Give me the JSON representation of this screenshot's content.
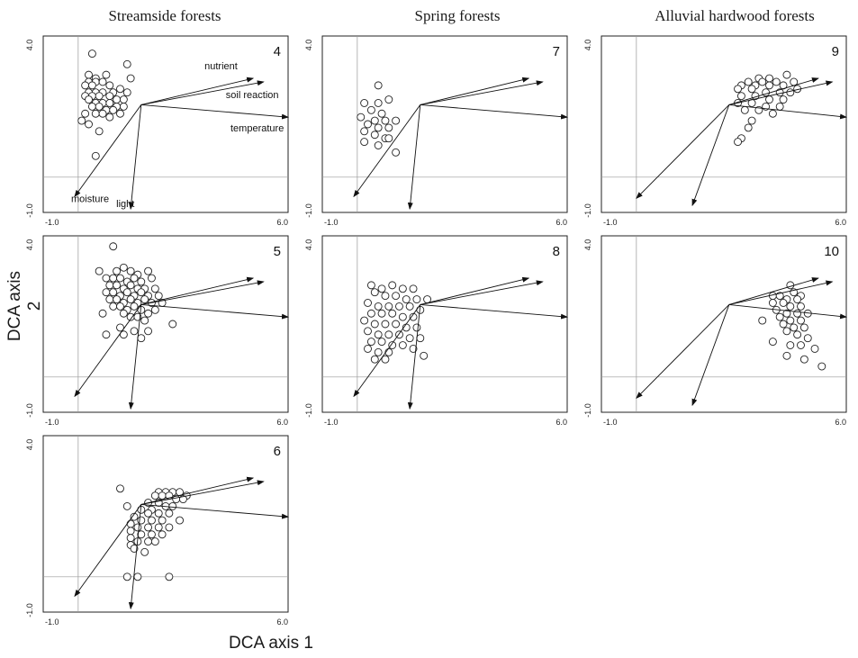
{
  "column_titles": [
    "Streamside forests",
    "Spring forests",
    "Alluvial hardwood forests"
  ],
  "y_axis_title": "DCA axis 2",
  "x_axis_title": "DCA axis 1",
  "chart_data": {
    "type": "scatter",
    "xlim": [
      -1.0,
      6.0
    ],
    "ylim": [
      -1.0,
      4.0
    ],
    "x_tick_labels": [
      "-1.0",
      "6.0"
    ],
    "y_tick_labels": [
      "4.0",
      "-1.0"
    ],
    "reference_lines": {
      "x": 0,
      "y": 0
    },
    "vector_labels": [
      "nutrient",
      "soil reaction",
      "temperature",
      "light",
      "moisture"
    ],
    "panels": [
      {
        "label": "4",
        "origin": [
          1.8,
          2.05
        ],
        "vectors": [
          [
            5.0,
            2.8
          ],
          [
            5.3,
            2.7
          ],
          [
            6.0,
            1.7
          ],
          [
            1.5,
            -0.9
          ],
          [
            -0.1,
            -0.55
          ]
        ],
        "points": [
          [
            0.4,
            3.5
          ],
          [
            1.4,
            3.2
          ],
          [
            0.3,
            2.9
          ],
          [
            0.5,
            2.8
          ],
          [
            0.8,
            2.9
          ],
          [
            1.5,
            2.8
          ],
          [
            0.3,
            2.7
          ],
          [
            0.5,
            2.7
          ],
          [
            0.7,
            2.7
          ],
          [
            0.9,
            2.6
          ],
          [
            0.2,
            2.6
          ],
          [
            0.4,
            2.6
          ],
          [
            1.2,
            2.5
          ],
          [
            1.4,
            2.4
          ],
          [
            0.3,
            2.4
          ],
          [
            0.5,
            2.4
          ],
          [
            0.7,
            2.4
          ],
          [
            1.0,
            2.4
          ],
          [
            0.2,
            2.3
          ],
          [
            0.4,
            2.3
          ],
          [
            0.6,
            2.3
          ],
          [
            0.9,
            2.3
          ],
          [
            1.1,
            2.2
          ],
          [
            1.3,
            2.2
          ],
          [
            0.3,
            2.2
          ],
          [
            0.5,
            2.1
          ],
          [
            0.7,
            2.1
          ],
          [
            0.9,
            2.1
          ],
          [
            1.1,
            2.0
          ],
          [
            1.3,
            2.0
          ],
          [
            0.4,
            2.0
          ],
          [
            0.6,
            2.0
          ],
          [
            0.8,
            1.9
          ],
          [
            1.0,
            1.9
          ],
          [
            1.2,
            1.8
          ],
          [
            0.5,
            1.8
          ],
          [
            0.7,
            1.8
          ],
          [
            0.9,
            1.7
          ],
          [
            0.2,
            1.8
          ],
          [
            0.1,
            1.6
          ],
          [
            0.3,
            1.5
          ],
          [
            0.6,
            1.3
          ],
          [
            0.5,
            0.6
          ]
        ]
      },
      {
        "label": "5",
        "origin": [
          1.8,
          2.05
        ],
        "vectors": [
          [
            5.0,
            2.8
          ],
          [
            5.3,
            2.7
          ],
          [
            6.0,
            1.7
          ],
          [
            1.5,
            -0.9
          ],
          [
            -0.1,
            -0.55
          ]
        ],
        "points": [
          [
            1.0,
            3.7
          ],
          [
            0.6,
            3.0
          ],
          [
            1.1,
            3.0
          ],
          [
            1.3,
            3.1
          ],
          [
            1.5,
            3.0
          ],
          [
            1.7,
            2.9
          ],
          [
            2.0,
            3.0
          ],
          [
            0.8,
            2.8
          ],
          [
            1.0,
            2.8
          ],
          [
            1.2,
            2.8
          ],
          [
            1.4,
            2.7
          ],
          [
            1.6,
            2.8
          ],
          [
            1.8,
            2.7
          ],
          [
            2.1,
            2.8
          ],
          [
            0.9,
            2.6
          ],
          [
            1.1,
            2.6
          ],
          [
            1.3,
            2.5
          ],
          [
            1.5,
            2.6
          ],
          [
            1.7,
            2.5
          ],
          [
            1.9,
            2.5
          ],
          [
            2.2,
            2.5
          ],
          [
            0.8,
            2.4
          ],
          [
            1.0,
            2.4
          ],
          [
            1.2,
            2.3
          ],
          [
            1.4,
            2.4
          ],
          [
            1.6,
            2.3
          ],
          [
            1.8,
            2.4
          ],
          [
            2.0,
            2.3
          ],
          [
            2.3,
            2.3
          ],
          [
            0.9,
            2.2
          ],
          [
            1.1,
            2.2
          ],
          [
            1.3,
            2.1
          ],
          [
            1.5,
            2.2
          ],
          [
            1.7,
            2.1
          ],
          [
            1.9,
            2.2
          ],
          [
            2.1,
            2.1
          ],
          [
            2.4,
            2.1
          ],
          [
            1.0,
            2.0
          ],
          [
            1.2,
            2.0
          ],
          [
            1.4,
            1.9
          ],
          [
            1.6,
            2.0
          ],
          [
            1.8,
            1.9
          ],
          [
            2.0,
            1.8
          ],
          [
            2.2,
            1.9
          ],
          [
            1.3,
            1.8
          ],
          [
            1.5,
            1.7
          ],
          [
            1.7,
            1.7
          ],
          [
            1.9,
            1.6
          ],
          [
            0.7,
            1.8
          ],
          [
            2.7,
            1.5
          ],
          [
            1.2,
            1.4
          ],
          [
            1.6,
            1.3
          ],
          [
            2.0,
            1.3
          ],
          [
            0.8,
            1.2
          ],
          [
            1.8,
            1.1
          ],
          [
            1.3,
            1.2
          ]
        ]
      },
      {
        "label": "6",
        "origin": [
          1.8,
          2.05
        ],
        "vectors": [
          [
            5.0,
            2.8
          ],
          [
            5.3,
            2.7
          ],
          [
            6.0,
            1.7
          ],
          [
            1.5,
            -0.9
          ],
          [
            -0.1,
            -0.55
          ]
        ],
        "points": [
          [
            1.2,
            2.5
          ],
          [
            2.3,
            2.4
          ],
          [
            2.5,
            2.4
          ],
          [
            2.7,
            2.4
          ],
          [
            2.9,
            2.4
          ],
          [
            3.1,
            2.3
          ],
          [
            2.2,
            2.3
          ],
          [
            2.4,
            2.3
          ],
          [
            2.6,
            2.3
          ],
          [
            2.8,
            2.2
          ],
          [
            3.0,
            2.2
          ],
          [
            2.0,
            2.1
          ],
          [
            2.3,
            2.1
          ],
          [
            2.5,
            2.0
          ],
          [
            2.7,
            2.0
          ],
          [
            1.4,
            2.0
          ],
          [
            2.1,
            1.9
          ],
          [
            1.8,
            1.9
          ],
          [
            2.0,
            1.8
          ],
          [
            2.3,
            1.8
          ],
          [
            2.6,
            1.8
          ],
          [
            1.6,
            1.7
          ],
          [
            1.8,
            1.6
          ],
          [
            2.1,
            1.6
          ],
          [
            2.4,
            1.6
          ],
          [
            2.9,
            1.6
          ],
          [
            1.5,
            1.5
          ],
          [
            1.7,
            1.4
          ],
          [
            2.0,
            1.4
          ],
          [
            2.3,
            1.4
          ],
          [
            2.6,
            1.4
          ],
          [
            1.5,
            1.3
          ],
          [
            1.8,
            1.2
          ],
          [
            2.1,
            1.2
          ],
          [
            2.4,
            1.2
          ],
          [
            1.5,
            1.1
          ],
          [
            1.7,
            1.0
          ],
          [
            2.0,
            1.0
          ],
          [
            2.2,
            1.0
          ],
          [
            1.5,
            0.9
          ],
          [
            1.6,
            0.8
          ],
          [
            1.9,
            0.7
          ],
          [
            1.4,
            0.0
          ],
          [
            1.7,
            0.0
          ],
          [
            2.6,
            0.0
          ]
        ]
      },
      {
        "label": "7",
        "origin": [
          1.8,
          2.05
        ],
        "vectors": [
          [
            4.9,
            2.8
          ],
          [
            5.3,
            2.7
          ],
          [
            6.0,
            1.7
          ],
          [
            1.5,
            -0.9
          ],
          [
            -0.1,
            -0.55
          ]
        ],
        "points": [
          [
            0.6,
            2.6
          ],
          [
            0.2,
            2.1
          ],
          [
            0.6,
            2.1
          ],
          [
            0.9,
            2.2
          ],
          [
            0.4,
            1.9
          ],
          [
            0.7,
            1.8
          ],
          [
            0.1,
            1.7
          ],
          [
            0.5,
            1.6
          ],
          [
            0.8,
            1.6
          ],
          [
            1.1,
            1.6
          ],
          [
            0.3,
            1.5
          ],
          [
            0.6,
            1.4
          ],
          [
            0.9,
            1.4
          ],
          [
            0.2,
            1.3
          ],
          [
            0.5,
            1.2
          ],
          [
            0.8,
            1.1
          ],
          [
            0.2,
            1.0
          ],
          [
            0.6,
            0.9
          ],
          [
            0.9,
            1.1
          ],
          [
            1.1,
            0.7
          ]
        ]
      },
      {
        "label": "8",
        "origin": [
          1.8,
          2.05
        ],
        "vectors": [
          [
            4.9,
            2.8
          ],
          [
            5.3,
            2.7
          ],
          [
            6.0,
            1.7
          ],
          [
            1.5,
            -0.9
          ],
          [
            -0.1,
            -0.55
          ]
        ],
        "points": [
          [
            0.4,
            2.6
          ],
          [
            0.7,
            2.5
          ],
          [
            1.0,
            2.6
          ],
          [
            1.3,
            2.5
          ],
          [
            1.6,
            2.5
          ],
          [
            0.5,
            2.4
          ],
          [
            0.8,
            2.3
          ],
          [
            1.1,
            2.3
          ],
          [
            1.4,
            2.2
          ],
          [
            1.7,
            2.2
          ],
          [
            2.0,
            2.2
          ],
          [
            0.3,
            2.1
          ],
          [
            0.6,
            2.0
          ],
          [
            0.9,
            2.0
          ],
          [
            1.2,
            2.0
          ],
          [
            1.5,
            2.0
          ],
          [
            1.8,
            1.9
          ],
          [
            0.4,
            1.8
          ],
          [
            0.7,
            1.8
          ],
          [
            1.0,
            1.8
          ],
          [
            1.3,
            1.7
          ],
          [
            1.6,
            1.7
          ],
          [
            0.2,
            1.6
          ],
          [
            0.5,
            1.5
          ],
          [
            0.8,
            1.5
          ],
          [
            1.1,
            1.5
          ],
          [
            1.4,
            1.4
          ],
          [
            1.7,
            1.4
          ],
          [
            0.3,
            1.3
          ],
          [
            0.6,
            1.2
          ],
          [
            0.9,
            1.2
          ],
          [
            1.2,
            1.2
          ],
          [
            1.5,
            1.1
          ],
          [
            1.8,
            1.1
          ],
          [
            0.4,
            1.0
          ],
          [
            0.7,
            1.0
          ],
          [
            1.0,
            0.9
          ],
          [
            1.3,
            0.9
          ],
          [
            1.6,
            0.8
          ],
          [
            0.3,
            0.8
          ],
          [
            0.6,
            0.7
          ],
          [
            0.9,
            0.7
          ],
          [
            1.9,
            0.6
          ],
          [
            0.5,
            0.5
          ],
          [
            0.8,
            0.5
          ]
        ]
      },
      {
        "label": "9",
        "origin": [
          2.65,
          2.05
        ],
        "vectors": [
          [
            5.2,
            2.8
          ],
          [
            5.6,
            2.7
          ],
          [
            6.0,
            1.7
          ],
          [
            1.6,
            -0.8
          ],
          [
            0.0,
            -0.6
          ]
        ],
        "points": [
          [
            3.5,
            2.8
          ],
          [
            3.8,
            2.8
          ],
          [
            4.3,
            2.9
          ],
          [
            3.2,
            2.7
          ],
          [
            3.6,
            2.7
          ],
          [
            4.0,
            2.7
          ],
          [
            4.5,
            2.7
          ],
          [
            3.0,
            2.6
          ],
          [
            3.4,
            2.6
          ],
          [
            3.8,
            2.6
          ],
          [
            4.2,
            2.6
          ],
          [
            4.6,
            2.5
          ],
          [
            2.9,
            2.5
          ],
          [
            3.3,
            2.5
          ],
          [
            3.7,
            2.4
          ],
          [
            4.1,
            2.4
          ],
          [
            4.4,
            2.4
          ],
          [
            3.0,
            2.3
          ],
          [
            3.4,
            2.3
          ],
          [
            3.8,
            2.2
          ],
          [
            4.2,
            2.2
          ],
          [
            2.9,
            2.1
          ],
          [
            3.3,
            2.1
          ],
          [
            3.7,
            2.0
          ],
          [
            4.1,
            2.0
          ],
          [
            3.1,
            1.9
          ],
          [
            3.5,
            1.9
          ],
          [
            3.9,
            1.8
          ],
          [
            3.3,
            1.6
          ],
          [
            3.2,
            1.4
          ],
          [
            3.0,
            1.1
          ],
          [
            2.9,
            1.0
          ]
        ]
      },
      {
        "label": "10",
        "origin": [
          2.65,
          2.05
        ],
        "vectors": [
          [
            5.2,
            2.8
          ],
          [
            5.6,
            2.7
          ],
          [
            6.0,
            1.7
          ],
          [
            1.6,
            -0.8
          ],
          [
            0.0,
            -0.6
          ]
        ],
        "points": [
          [
            4.4,
            2.6
          ],
          [
            4.5,
            2.4
          ],
          [
            4.7,
            2.3
          ],
          [
            3.9,
            2.3
          ],
          [
            4.1,
            2.3
          ],
          [
            4.3,
            2.2
          ],
          [
            4.6,
            2.2
          ],
          [
            3.9,
            2.1
          ],
          [
            4.2,
            2.1
          ],
          [
            4.4,
            2.0
          ],
          [
            4.7,
            2.0
          ],
          [
            4.0,
            1.9
          ],
          [
            4.3,
            1.8
          ],
          [
            4.6,
            1.8
          ],
          [
            4.9,
            1.8
          ],
          [
            4.1,
            1.7
          ],
          [
            4.4,
            1.6
          ],
          [
            4.7,
            1.6
          ],
          [
            3.6,
            1.6
          ],
          [
            4.2,
            1.5
          ],
          [
            4.5,
            1.4
          ],
          [
            4.8,
            1.4
          ],
          [
            4.3,
            1.3
          ],
          [
            4.6,
            1.2
          ],
          [
            4.9,
            1.1
          ],
          [
            3.9,
            1.0
          ],
          [
            4.4,
            0.9
          ],
          [
            4.7,
            0.9
          ],
          [
            5.1,
            0.8
          ],
          [
            4.3,
            0.6
          ],
          [
            4.8,
            0.5
          ],
          [
            5.3,
            0.3
          ]
        ]
      }
    ]
  }
}
